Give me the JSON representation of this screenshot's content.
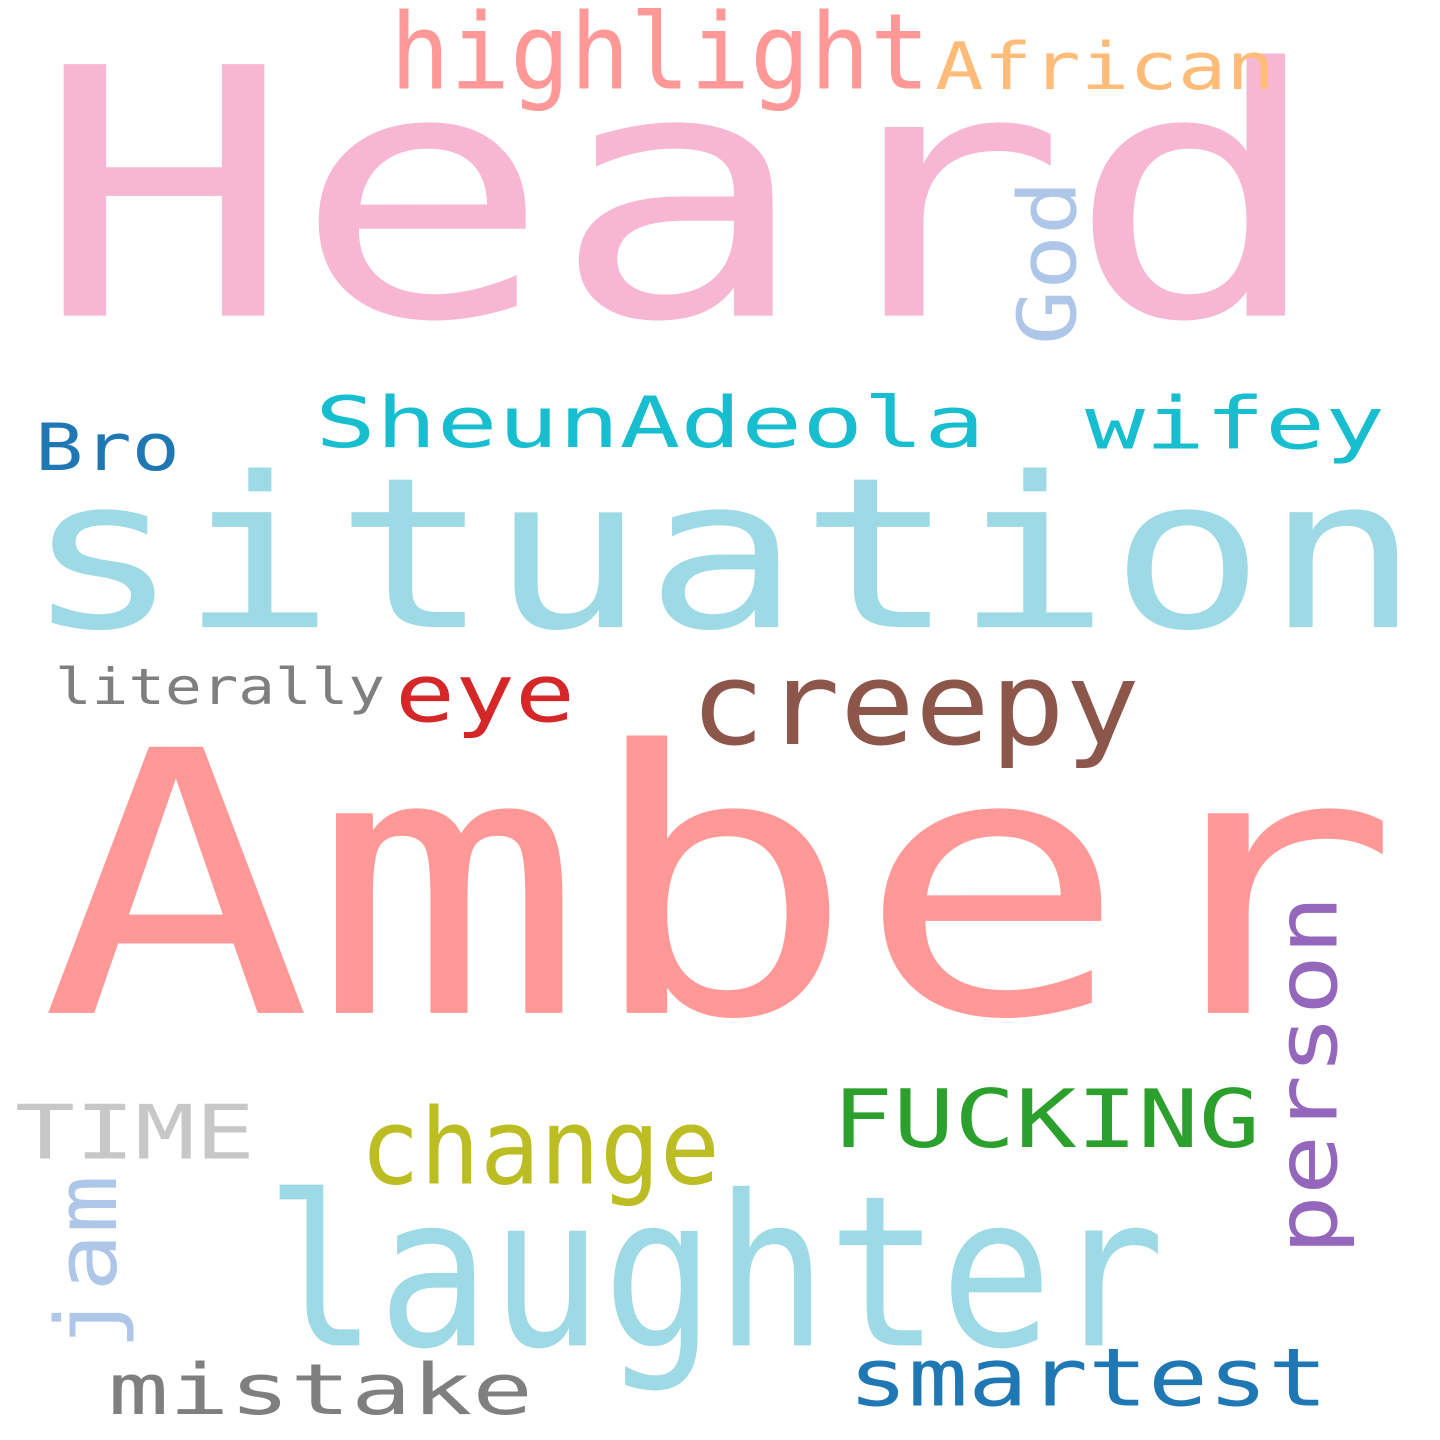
{
  "words": [
    {
      "text": "Heard",
      "color": "#f7b6d2"
    },
    {
      "text": "situation",
      "color": "#9edae5"
    },
    {
      "text": "Amber",
      "color": "#ff9896"
    },
    {
      "text": "laughter",
      "color": "#9edae5"
    },
    {
      "text": "creepy",
      "color": "#8c564b"
    },
    {
      "text": "SheunAdeola",
      "color": "#17becf"
    },
    {
      "text": "wifey",
      "color": "#17becf"
    },
    {
      "text": "highlight",
      "color": "#ff9896"
    },
    {
      "text": "African",
      "color": "#ffbb78"
    },
    {
      "text": "God",
      "color": "#aec7e8"
    },
    {
      "text": "Bro",
      "color": "#1f77b4"
    },
    {
      "text": "eye",
      "color": "#d62728"
    },
    {
      "text": "literally",
      "color": "#7f7f7f"
    },
    {
      "text": "FUCKING",
      "color": "#2ca02c"
    },
    {
      "text": "change",
      "color": "#bcbd22"
    },
    {
      "text": "TIME",
      "color": "#c7c7c7"
    },
    {
      "text": "person",
      "color": "#9467bd"
    },
    {
      "text": "jam",
      "color": "#aec7e8"
    },
    {
      "text": "mistake",
      "color": "#7f7f7f"
    },
    {
      "text": "smartest",
      "color": "#1f77b4"
    }
  ]
}
